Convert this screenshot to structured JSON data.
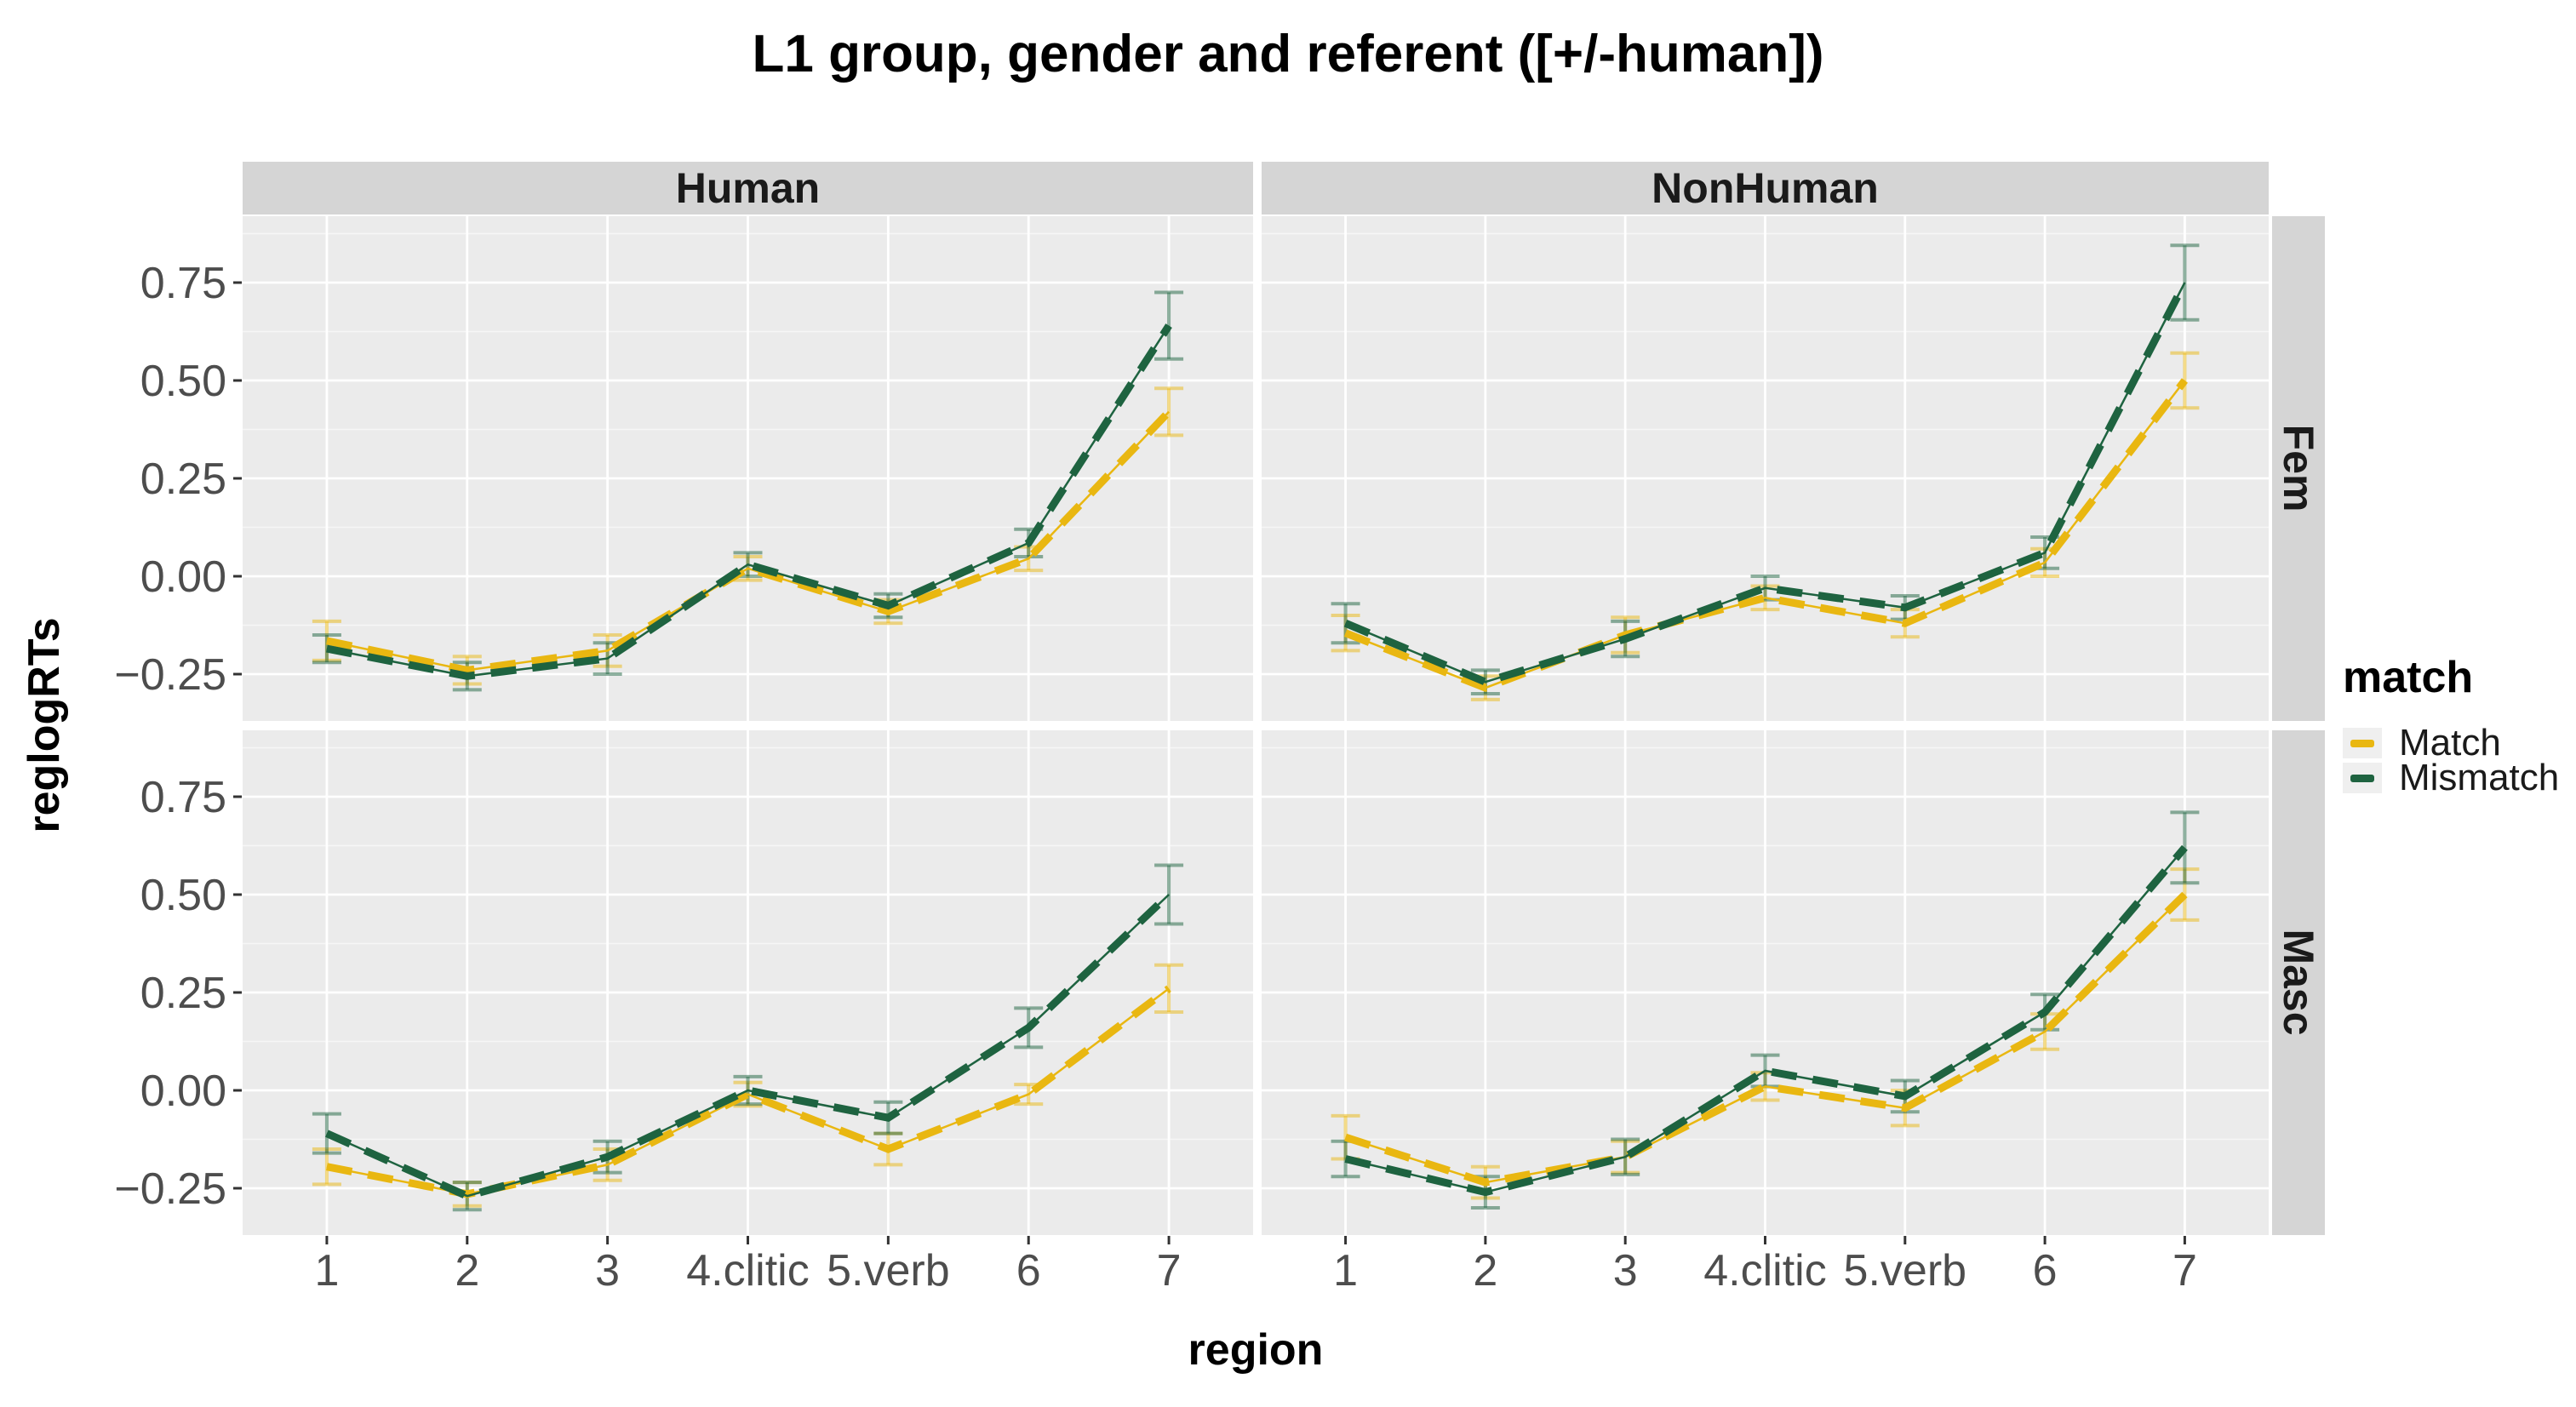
{
  "title": "L1 group, gender and referent ([+/-human])",
  "axes": {
    "x_label": "region",
    "y_label": "reglogRTs",
    "x_tick_labels": [
      "1",
      "2",
      "3",
      "4.clitic",
      "5.verb",
      "6",
      "7"
    ],
    "y_tick_labels": [
      "0.75",
      "0.50",
      "0.25",
      "0.00",
      "−0.25"
    ]
  },
  "facets": {
    "columns": [
      "Human",
      "NonHuman"
    ],
    "rows": [
      "Fem",
      "Masc"
    ]
  },
  "legend": {
    "title": "match",
    "entries": [
      {
        "label": "Match",
        "color": "#E9B711"
      },
      {
        "label": "Mismatch",
        "color": "#1E6340"
      }
    ]
  },
  "colors": {
    "match": "#E9B711",
    "mismatch": "#1E6340",
    "panel_bg": "#EBEBEB",
    "strip_bg": "#D5D5D5",
    "grid_major": "#FFFFFF",
    "grid_minor": "#F6F6F6",
    "axis_text": "#4D4D4D",
    "tick_mark": "#333333",
    "legend_key_bg": "#EFEFEF"
  },
  "chart_data": {
    "type": "line",
    "title": "L1 group, gender and referent ([+/-human])",
    "xlabel": "region",
    "ylabel": "reglogRTs",
    "x_categories": [
      "1",
      "2",
      "3",
      "4.clitic",
      "5.verb",
      "6",
      "7"
    ],
    "y_breaks": [
      0.75,
      0.5,
      0.25,
      0.0,
      -0.25
    ],
    "y_minor_breaks": [
      0.875,
      0.625,
      0.375,
      0.125,
      -0.125
    ],
    "ylim": [
      -0.37,
      0.92
    ],
    "grid": true,
    "legend_position": "right",
    "facet_columns": [
      "Human",
      "NonHuman"
    ],
    "facet_rows": [
      "Fem",
      "Masc"
    ],
    "error_bars": true,
    "line_style": "dashed",
    "panels": [
      {
        "column": "Human",
        "row": "Fem",
        "series": [
          {
            "name": "Match",
            "color": "#E9B711",
            "values": [
              -0.165,
              -0.24,
              -0.19,
              0.02,
              -0.09,
              0.045,
              0.42
            ],
            "stderr": [
              0.05,
              0.035,
              0.04,
              0.03,
              0.03,
              0.03,
              0.06
            ]
          },
          {
            "name": "Mismatch",
            "color": "#1E6340",
            "values": [
              -0.185,
              -0.255,
              -0.21,
              0.03,
              -0.075,
              0.085,
              0.64
            ],
            "stderr": [
              0.035,
              0.035,
              0.04,
              0.03,
              0.03,
              0.035,
              0.085
            ]
          }
        ]
      },
      {
        "column": "NonHuman",
        "row": "Fem",
        "series": [
          {
            "name": "Match",
            "color": "#E9B711",
            "values": [
              -0.145,
              -0.285,
              -0.15,
              -0.055,
              -0.12,
              0.035,
              0.5
            ],
            "stderr": [
              0.045,
              0.03,
              0.045,
              0.03,
              0.035,
              0.035,
              0.07
            ]
          },
          {
            "name": "Mismatch",
            "color": "#1E6340",
            "values": [
              -0.12,
              -0.27,
              -0.16,
              -0.03,
              -0.08,
              0.06,
              0.75
            ],
            "stderr": [
              0.05,
              0.03,
              0.045,
              0.03,
              0.03,
              0.04,
              0.095
            ]
          }
        ]
      },
      {
        "column": "Human",
        "row": "Masc",
        "series": [
          {
            "name": "Match",
            "color": "#E9B711",
            "values": [
              -0.195,
              -0.265,
              -0.19,
              -0.01,
              -0.15,
              -0.01,
              0.26
            ],
            "stderr": [
              0.045,
              0.03,
              0.04,
              0.03,
              0.04,
              0.025,
              0.06
            ]
          },
          {
            "name": "Mismatch",
            "color": "#1E6340",
            "values": [
              -0.11,
              -0.27,
              -0.17,
              0.0,
              -0.07,
              0.16,
              0.5
            ],
            "stderr": [
              0.05,
              0.035,
              0.04,
              0.035,
              0.04,
              0.05,
              0.075
            ]
          }
        ]
      },
      {
        "column": "NonHuman",
        "row": "Masc",
        "series": [
          {
            "name": "Match",
            "color": "#E9B711",
            "values": [
              -0.12,
              -0.235,
              -0.17,
              0.01,
              -0.045,
              0.15,
              0.5
            ],
            "stderr": [
              0.055,
              0.04,
              0.04,
              0.035,
              0.045,
              0.045,
              0.065
            ]
          },
          {
            "name": "Mismatch",
            "color": "#1E6340",
            "values": [
              -0.175,
              -0.26,
              -0.17,
              0.05,
              -0.015,
              0.2,
              0.62
            ],
            "stderr": [
              0.045,
              0.04,
              0.045,
              0.04,
              0.04,
              0.045,
              0.09
            ]
          }
        ]
      }
    ]
  }
}
